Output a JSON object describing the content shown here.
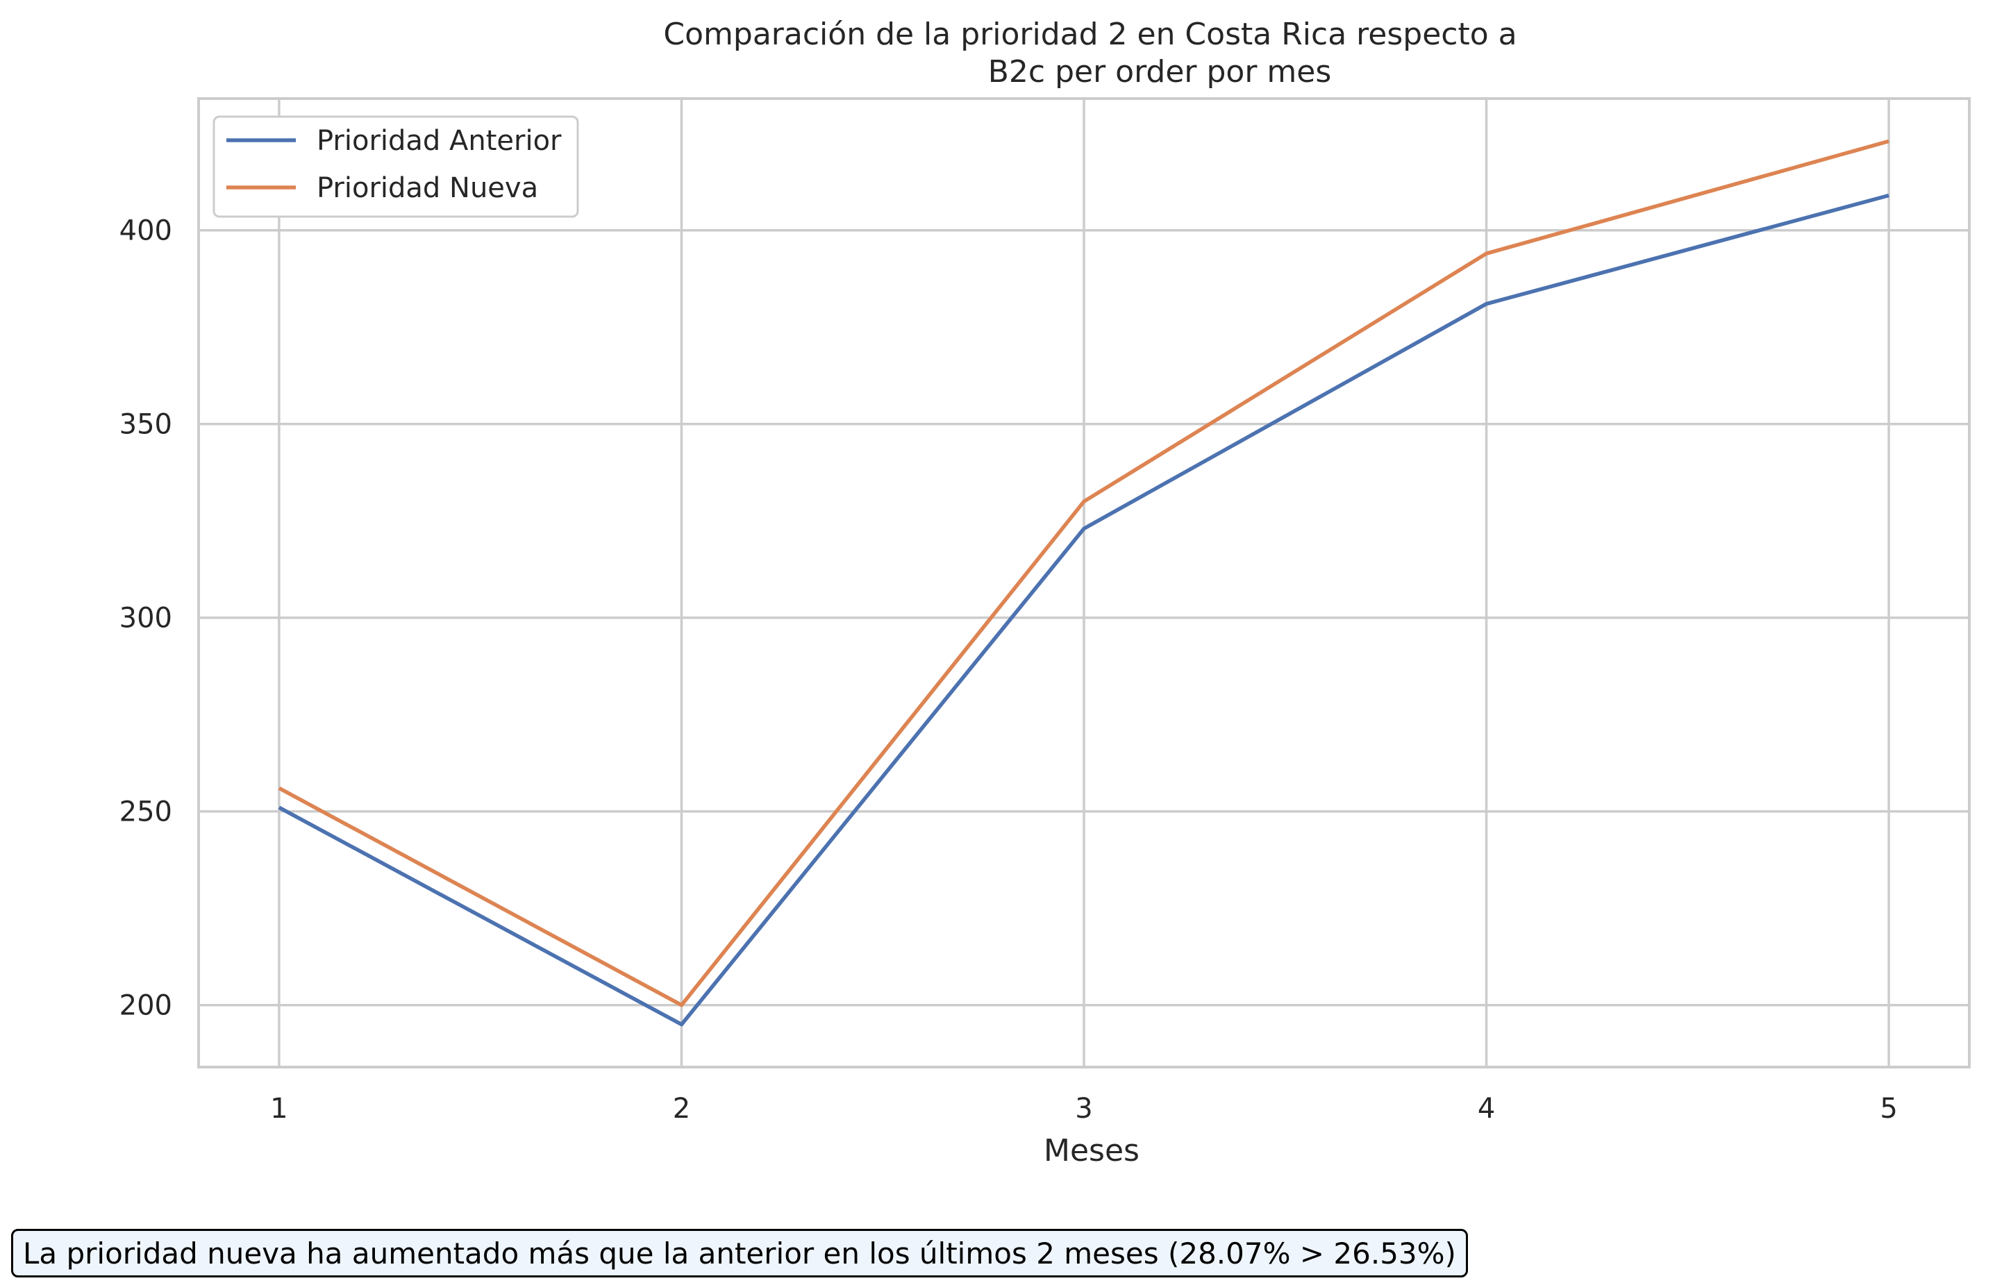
{
  "chart_data": {
    "type": "line",
    "title": "Comparación de la prioridad 2 en Costa Rica respecto a\nB2c per order por mes",
    "title_lines": [
      "Comparación de la prioridad 2 en Costa Rica respecto a",
      "B2c per order por mes"
    ],
    "xlabel": "Meses",
    "ylabel": "",
    "x": [
      1,
      2,
      3,
      4,
      5
    ],
    "x_tick_labels": [
      "1",
      "2",
      "3",
      "4",
      "5"
    ],
    "y_ticks": [
      200,
      250,
      300,
      350,
      400
    ],
    "y_tick_labels": [
      "200",
      "250",
      "300",
      "350",
      "400"
    ],
    "xlim": [
      0.8,
      5.2
    ],
    "ylim": [
      184,
      434
    ],
    "grid": true,
    "legend_position": "top-left",
    "series": [
      {
        "name": "Prioridad Anterior",
        "color": "#4c72b0",
        "values": [
          251,
          195,
          323,
          381,
          409
        ]
      },
      {
        "name": "Prioridad Nueva",
        "color": "#dd8452",
        "values": [
          256,
          200,
          330,
          394,
          423
        ]
      }
    ]
  },
  "annotation": {
    "text": "La prioridad nueva ha aumentado más que la anterior en los últimos 2 meses (28.07% > 26.53%)"
  }
}
